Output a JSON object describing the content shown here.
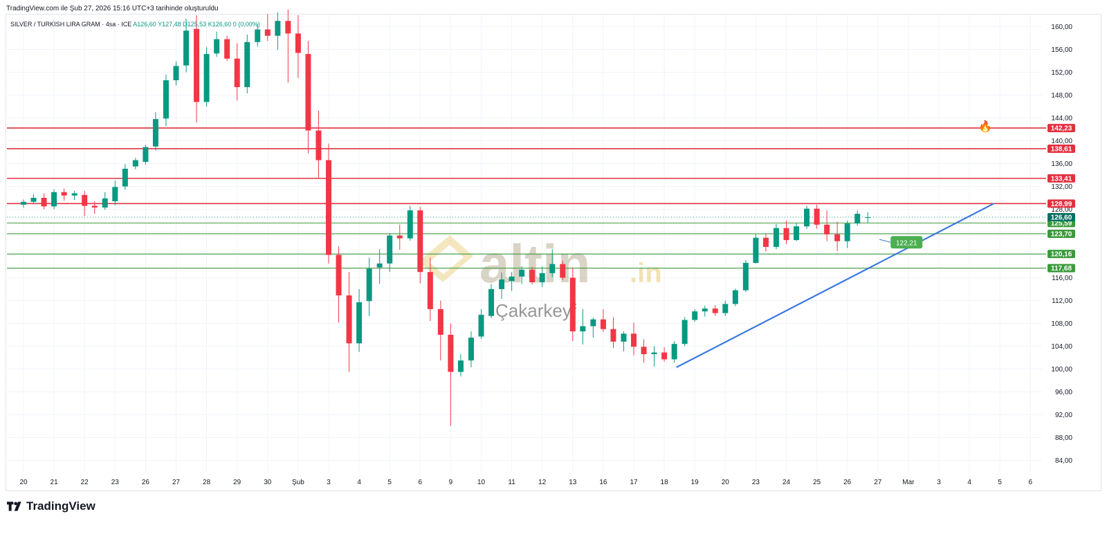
{
  "header": {
    "note": "TradingView.com ile Şub 27, 2026 15:16 UTC+3 tarihinde oluşturuldu",
    "symbol": "SILVER / TURKISH LIRA GRAM · 4sa · ICE",
    "o": "A126,60",
    "h": "Y127,48",
    "l": "D125,53",
    "c": "K126,60",
    "chg": "0 (0,00%)"
  },
  "watermark": {
    "brand": "altin",
    "tld": ".in",
    "sub": "Çakarkeyf"
  },
  "footer": {
    "brand": "TradingView"
  },
  "colors": {
    "up": "#089981",
    "down": "#f23645",
    "resistance": "#e0313f",
    "support": "#3c9a3c",
    "trend": "#3a78e0",
    "grid": "#f0f3fa"
  },
  "chart_data": {
    "type": "candlestick",
    "timeframe": "4sa",
    "ylim": [
      82,
      162
    ],
    "y_ticks": [
      "160,00",
      "156,00",
      "152,00",
      "148,00",
      "144,00",
      "140,00",
      "136,00",
      "132,00",
      "128,00",
      "124,00",
      "120,00",
      "116,00",
      "112,00",
      "108,00",
      "104,00",
      "100,00",
      "96,00",
      "92,00",
      "88,00",
      "84,00"
    ],
    "x_labels": [
      "20",
      "21",
      "22",
      "23",
      "26",
      "27",
      "28",
      "29",
      "30",
      "Şub",
      "3",
      "4",
      "5",
      "6",
      "9",
      "10",
      "11",
      "12",
      "13",
      "16",
      "17",
      "18",
      "19",
      "20",
      "23",
      "24",
      "25",
      "26",
      "27",
      "Mar",
      "3",
      "4",
      "5",
      "6"
    ],
    "horizontal_levels": [
      {
        "value": 142.23,
        "label": "142,23",
        "kind": "resistance"
      },
      {
        "value": 138.61,
        "label": "138,61",
        "kind": "resistance"
      },
      {
        "value": 133.41,
        "label": "133,41",
        "kind": "resistance"
      },
      {
        "value": 128.99,
        "label": "128,99",
        "kind": "resistance"
      },
      {
        "value": 125.59,
        "label": "125,59",
        "kind": "support"
      },
      {
        "value": 123.7,
        "label": "123,70",
        "kind": "support"
      },
      {
        "value": 120.16,
        "label": "120,16",
        "kind": "support"
      },
      {
        "value": 117.68,
        "label": "117,68",
        "kind": "support"
      }
    ],
    "last_price": {
      "value": 126.6,
      "label": "126,60"
    },
    "trendline": {
      "from": {
        "x": 21.4,
        "y": 100.3
      },
      "to": {
        "x": 31.8,
        "y": 128.99
      },
      "annotation": "122,21",
      "annotation_value": 122.21
    },
    "candles": [
      [
        0,
        128.8,
        129.7,
        128.3,
        129.3
      ],
      [
        0.33,
        129.3,
        130.6,
        128.9,
        130.0
      ],
      [
        0.67,
        130.0,
        130.8,
        128.0,
        128.5
      ],
      [
        1,
        128.5,
        131.5,
        128.0,
        131.0
      ],
      [
        1.33,
        131.0,
        131.6,
        129.5,
        130.4
      ],
      [
        1.67,
        130.4,
        131.2,
        129.6,
        130.8
      ],
      [
        2,
        130.5,
        131.2,
        126.8,
        128.6
      ],
      [
        2.33,
        128.6,
        129.4,
        127.2,
        128.3
      ],
      [
        2.67,
        128.3,
        131.0,
        127.9,
        129.9
      ],
      [
        3,
        129.4,
        133.0,
        128.7,
        131.9
      ],
      [
        3.33,
        132.0,
        135.9,
        131.4,
        135.1
      ],
      [
        3.67,
        135.5,
        137.0,
        135.0,
        136.6
      ],
      [
        4,
        136.3,
        139.3,
        135.8,
        138.9
      ],
      [
        4.33,
        139.0,
        145.0,
        138.3,
        143.8
      ],
      [
        4.67,
        143.9,
        151.6,
        142.6,
        150.6
      ],
      [
        5,
        150.6,
        153.9,
        149.7,
        153.1
      ],
      [
        5.33,
        153.2,
        161.4,
        152.0,
        159.3
      ],
      [
        5.67,
        159.6,
        162.0,
        143.2,
        146.8
      ],
      [
        6,
        146.8,
        156.4,
        146.0,
        155.2
      ],
      [
        6.33,
        155.3,
        159.1,
        154.7,
        157.8
      ],
      [
        6.67,
        157.8,
        158.4,
        154.0,
        154.4
      ],
      [
        7,
        154.4,
        157.1,
        147.1,
        149.4
      ],
      [
        7.33,
        149.4,
        158.6,
        148.3,
        157.3
      ],
      [
        7.67,
        157.3,
        160.5,
        156.5,
        159.5
      ],
      [
        8,
        159.5,
        162.2,
        157.5,
        158.4
      ],
      [
        8.33,
        158.4,
        162.5,
        155.9,
        161.0
      ],
      [
        8.67,
        161.0,
        163.0,
        150.2,
        158.8
      ],
      [
        9,
        158.8,
        162.0,
        151.0,
        155.4
      ],
      [
        9.33,
        155.2,
        157.5,
        137.8,
        141.8
      ],
      [
        9.67,
        141.8,
        145.3,
        133.5,
        136.6
      ],
      [
        10,
        136.6,
        139.5,
        118.5,
        120.0
      ],
      [
        10.33,
        120.0,
        121.5,
        108.1,
        112.9
      ],
      [
        10.67,
        112.9,
        117.0,
        99.5,
        104.5
      ],
      [
        11,
        104.5,
        114.0,
        103.0,
        111.7
      ],
      [
        11.33,
        111.9,
        119.5,
        109.3,
        117.6
      ],
      [
        11.67,
        117.8,
        121.0,
        114.9,
        118.5
      ],
      [
        12,
        118.5,
        123.8,
        117.0,
        123.4
      ],
      [
        12.33,
        123.4,
        125.3,
        120.9,
        122.9
      ],
      [
        12.67,
        122.9,
        128.6,
        122.5,
        127.8
      ],
      [
        13,
        127.8,
        128.4,
        115.0,
        117.0
      ],
      [
        13.33,
        117.0,
        119.5,
        108.4,
        110.5
      ],
      [
        13.67,
        110.5,
        112.0,
        101.5,
        106.0
      ],
      [
        14,
        106.0,
        108.0,
        90.0,
        99.5
      ],
      [
        14.33,
        99.5,
        102.6,
        98.7,
        101.5
      ],
      [
        14.67,
        101.5,
        106.6,
        100.3,
        105.5
      ],
      [
        15,
        105.7,
        110.5,
        105.3,
        109.5
      ],
      [
        15.33,
        109.3,
        114.9,
        108.9,
        114.0
      ],
      [
        15.67,
        114.0,
        116.9,
        112.3,
        115.7
      ],
      [
        16,
        115.4,
        117.0,
        113.7,
        116.2
      ],
      [
        16.33,
        116.2,
        118.0,
        114.9,
        117.4
      ],
      [
        16.67,
        117.4,
        117.9,
        114.8,
        115.2
      ],
      [
        17,
        115.2,
        118.0,
        114.4,
        116.8
      ],
      [
        17.33,
        116.8,
        121.0,
        116.1,
        118.4
      ],
      [
        17.67,
        118.4,
        119.0,
        115.6,
        116.0
      ],
      [
        18,
        116.0,
        117.8,
        104.9,
        106.6
      ],
      [
        18.33,
        106.6,
        110.5,
        104.3,
        107.5
      ],
      [
        18.67,
        107.5,
        109.0,
        105.5,
        108.7
      ],
      [
        19,
        108.7,
        110.5,
        106.5,
        107.0
      ],
      [
        19.33,
        107.0,
        109.1,
        103.7,
        104.8
      ],
      [
        19.67,
        104.8,
        106.6,
        103.1,
        106.2
      ],
      [
        20,
        106.2,
        108.1,
        102.4,
        103.9
      ],
      [
        20.33,
        103.9,
        105.2,
        101.1,
        102.6
      ],
      [
        20.67,
        102.6,
        104.0,
        100.4,
        102.9
      ],
      [
        21,
        102.9,
        103.8,
        101.3,
        101.7
      ],
      [
        21.33,
        101.7,
        104.9,
        101.1,
        104.4
      ],
      [
        21.67,
        104.4,
        109.1,
        104.0,
        108.6
      ],
      [
        22,
        108.6,
        110.5,
        108.3,
        110.1
      ],
      [
        22.33,
        110.1,
        111.1,
        109.2,
        110.6
      ],
      [
        22.67,
        110.6,
        111.2,
        109.3,
        109.8
      ],
      [
        23,
        109.8,
        112.0,
        109.3,
        111.4
      ],
      [
        23.33,
        111.4,
        114.1,
        111.0,
        113.8
      ],
      [
        23.67,
        113.8,
        119.1,
        113.5,
        118.6
      ],
      [
        24,
        118.6,
        123.6,
        118.5,
        123.0
      ],
      [
        24.33,
        123.0,
        123.8,
        120.6,
        121.4
      ],
      [
        24.67,
        121.4,
        125.4,
        121.0,
        124.7
      ],
      [
        25,
        124.7,
        126.0,
        121.9,
        122.6
      ],
      [
        25.33,
        122.6,
        125.6,
        122.4,
        125.0
      ],
      [
        25.67,
        125.0,
        128.6,
        124.6,
        128.1
      ],
      [
        26,
        128.1,
        128.8,
        124.6,
        125.3
      ],
      [
        26.33,
        125.3,
        127.8,
        122.4,
        123.6
      ],
      [
        26.67,
        123.6,
        125.8,
        120.7,
        122.4
      ],
      [
        27,
        122.4,
        126.0,
        121.2,
        125.5
      ],
      [
        27.33,
        125.5,
        127.8,
        125.1,
        127.2
      ],
      [
        27.67,
        126.6,
        127.48,
        125.53,
        126.6
      ]
    ]
  }
}
